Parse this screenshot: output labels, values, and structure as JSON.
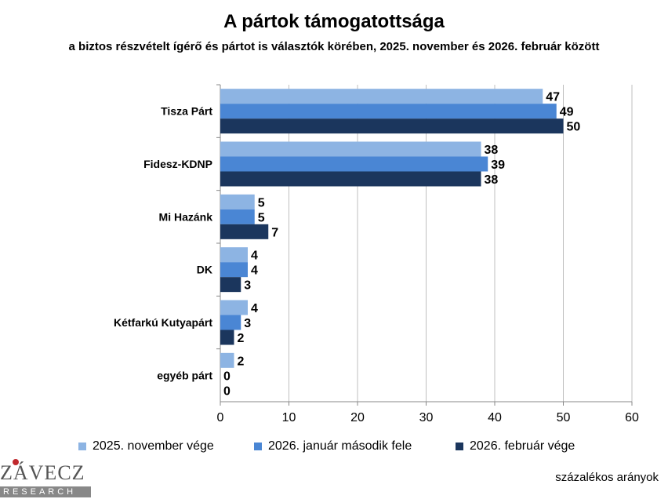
{
  "chart_data": {
    "type": "bar",
    "orientation": "horizontal",
    "title": "A pártok támogatottsága",
    "subtitle": "a biztos részvételt ígérő és pártot is választók körében, 2025. november és 2026. február között",
    "categories": [
      "Tisza Párt",
      "Fidesz-KDNP",
      "Mi Hazánk",
      "DK",
      "Kétfarkú Kutyapárt",
      "egyéb párt"
    ],
    "series": [
      {
        "name": "2025. november vége",
        "values": [
          47,
          38,
          5,
          4,
          4,
          2
        ],
        "color": "#8db4e3"
      },
      {
        "name": "2026. január második fele",
        "values": [
          49,
          39,
          5,
          4,
          3,
          0
        ],
        "color": "#4a86d4"
      },
      {
        "name": "2026. február vége",
        "values": [
          50,
          38,
          7,
          3,
          2,
          0
        ],
        "color": "#1b365d"
      }
    ],
    "xlim": [
      0,
      60
    ],
    "xticks": [
      "0",
      "10",
      "20",
      "30",
      "40",
      "50",
      "60"
    ],
    "grid": true,
    "legend_position": "bottom"
  },
  "footnote": "százalékos arányok",
  "logo": {
    "name": "ZÁVECZ",
    "sub": "RESEARCH",
    "accent_color": "#c0282d"
  }
}
